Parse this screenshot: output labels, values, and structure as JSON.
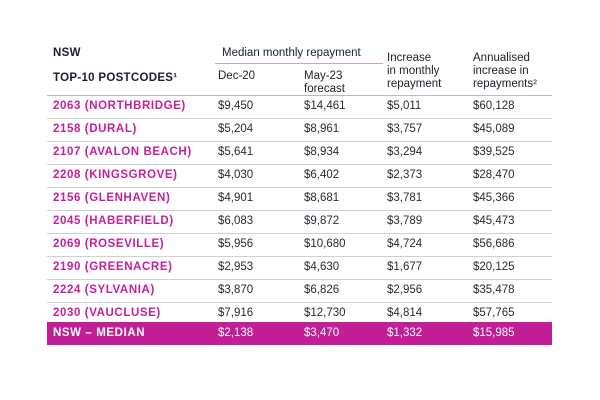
{
  "header": {
    "state": "NSW",
    "top_label": "TOP-10 POSTCODES¹",
    "group_label": "Median monthly repayment",
    "col1": "Dec-20",
    "col2_line1": "May-23",
    "col2_line2": "forecast",
    "col3_line1": "Increase",
    "col3_line2": "in monthly",
    "col3_line3": "repayment",
    "col4_line1": "Annualised",
    "col4_line2": "increase in",
    "col4_line3": "repayments²"
  },
  "rows": [
    {
      "postcode": "2063 (NORTHBRIDGE)",
      "dec20": "$9,450",
      "may23": "$14,461",
      "increase": "$5,011",
      "annualised": "$60,128"
    },
    {
      "postcode": "2158 (DURAL)",
      "dec20": "$5,204",
      "may23": "$8,961",
      "increase": "$3,757",
      "annualised": "$45,089"
    },
    {
      "postcode": "2107 (AVALON BEACH)",
      "dec20": "$5,641",
      "may23": "$8,934",
      "increase": "$3,294",
      "annualised": "$39,525"
    },
    {
      "postcode": "2208 (KINGSGROVE)",
      "dec20": "$4,030",
      "may23": "$6,402",
      "increase": "$2,373",
      "annualised": "$28,470"
    },
    {
      "postcode": "2156 (GLENHAVEN)",
      "dec20": "$4,901",
      "may23": "$8,681",
      "increase": "$3,781",
      "annualised": "$45,366"
    },
    {
      "postcode": "2045 (HABERFIELD)",
      "dec20": "$6,083",
      "may23": "$9,872",
      "increase": "$3,789",
      "annualised": "$45,473"
    },
    {
      "postcode": "2069 (ROSEVILLE)",
      "dec20": "$5,956",
      "may23": "$10,680",
      "increase": "$4,724",
      "annualised": "$56,686"
    },
    {
      "postcode": "2190 (GREENACRE)",
      "dec20": "$2,953",
      "may23": "$4,630",
      "increase": "$1,677",
      "annualised": "$20,125"
    },
    {
      "postcode": "2224 (SYLVANIA)",
      "dec20": "$3,870",
      "may23": "$6,826",
      "increase": "$2,956",
      "annualised": "$35,478"
    },
    {
      "postcode": "2030 (VAUCLUSE)",
      "dec20": "$7,916",
      "may23": "$12,730",
      "increase": "$4,814",
      "annualised": "$57,765"
    }
  ],
  "median": {
    "postcode": "NSW – MEDIAN",
    "dec20": "$2,138",
    "may23": "$3,470",
    "increase": "$1,332",
    "annualised": "$15,985"
  },
  "colors": {
    "accent": "#c21f97",
    "postcode_text": "#c4209a"
  }
}
